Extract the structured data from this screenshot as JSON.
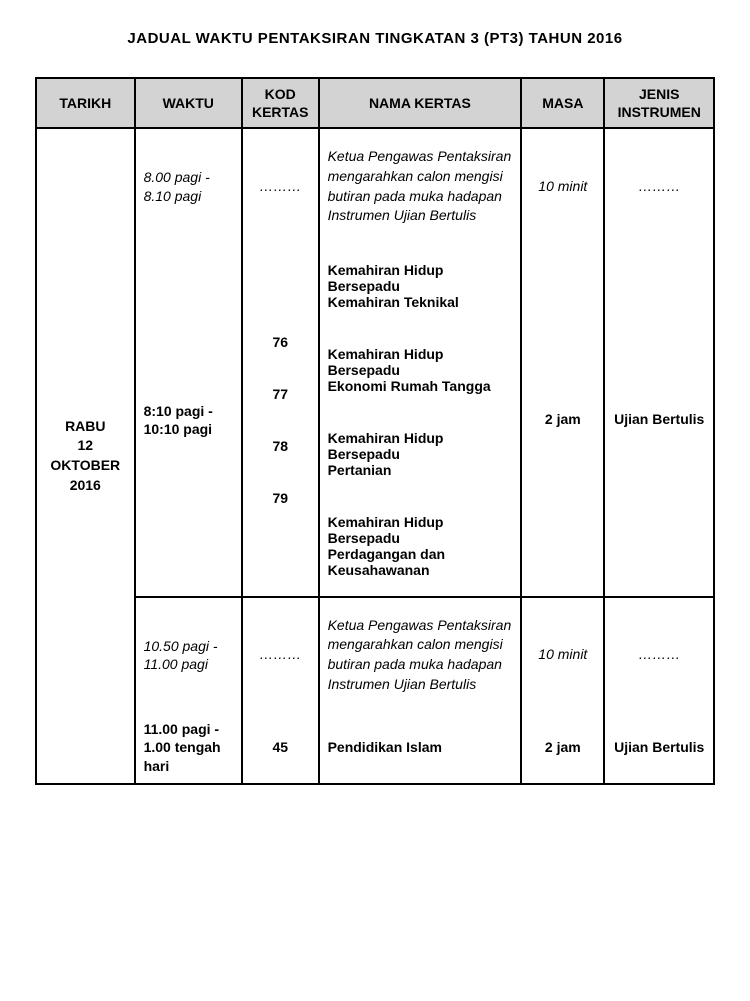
{
  "title": "JADUAL WAKTU PENTAKSIRAN TINGKATAN 3 (PT3) TAHUN 2016",
  "headers": {
    "tarikh": "TARIKH",
    "waktu": "WAKTU",
    "kod": "KOD KERTAS",
    "nama": "NAMA KERTAS",
    "masa": "MASA",
    "jenis": "JENIS INSTRUMEN"
  },
  "date": "RABU\n12  OKTOBER\n2016",
  "session1": {
    "prep": {
      "waktu": "8.00 pagi - 8.10 pagi",
      "kod": "………",
      "nama": "Ketua Pengawas Pentaksiran mengarahkan calon mengisi butiran pada muka hadapan Instrumen Ujian Bertulis",
      "masa": "10 minit",
      "jenis": "………"
    },
    "exam": {
      "waktu": "8:10 pagi - 10:10 pagi",
      "masa": "2 jam",
      "jenis": "Ujian Bertulis",
      "papers": [
        {
          "kod": "76",
          "nama": "Kemahiran Hidup Bersepadu\nKemahiran Teknikal"
        },
        {
          "kod": "77",
          "nama": "Kemahiran Hidup Bersepadu\nEkonomi Rumah Tangga"
        },
        {
          "kod": "78",
          "nama": "Kemahiran Hidup Bersepadu\nPertanian"
        },
        {
          "kod": "79",
          "nama": "Kemahiran Hidup Bersepadu\nPerdagangan dan Keusahawanan"
        }
      ]
    }
  },
  "session2": {
    "prep": {
      "waktu": "10.50 pagi - 11.00 pagi",
      "kod": "………",
      "nama": "Ketua Pengawas Pentaksiran mengarahkan calon mengisi butiran pada muka hadapan Instrumen Ujian Bertulis",
      "masa": "10 minit",
      "jenis": "………"
    },
    "exam": {
      "waktu": "11.00 pagi - 1.00 tengah hari",
      "kod": "45",
      "nama": "Pendidikan Islam",
      "masa": "2 jam",
      "jenis": "Ujian Bertulis"
    }
  }
}
